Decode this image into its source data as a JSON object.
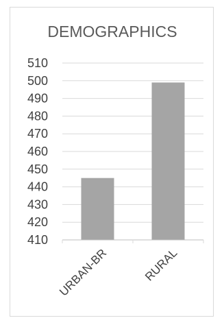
{
  "chart_data": {
    "type": "bar",
    "title": "DEMOGRAPHICS",
    "categories": [
      "URBAN-BR",
      "RURAL"
    ],
    "values": [
      445,
      499
    ],
    "ylim": [
      410,
      510
    ],
    "yticks": [
      "410",
      "420",
      "430",
      "440",
      "450",
      "460",
      "470",
      "480",
      "490",
      "500",
      "510"
    ],
    "grid": true,
    "legend": "none",
    "bar_color": "#a5a5a5"
  }
}
